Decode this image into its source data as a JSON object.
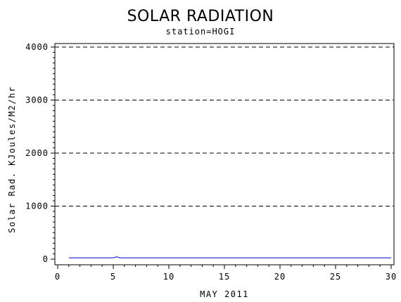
{
  "chart_data": {
    "type": "line",
    "title": "SOLAR RADIATION",
    "subtitle": "station=HOGI",
    "xlabel": "MAY 2011",
    "ylabel": "Solar Rad. KJoules/M2/hr",
    "xlim": [
      0,
      30
    ],
    "ylim": [
      0,
      4000
    ],
    "x_ticks": [
      0,
      5,
      10,
      15,
      20,
      25,
      30
    ],
    "y_ticks": [
      0,
      1000,
      2000,
      3000,
      4000
    ],
    "grid": "horizontal dashed at y ticks above 0",
    "series": [
      {
        "color": "#0000cc",
        "x": [
          1,
          5,
          5.3,
          5.6,
          10,
          15,
          20,
          25,
          30
        ],
        "y": [
          25,
          25,
          45,
          25,
          25,
          25,
          25,
          25,
          25
        ]
      }
    ],
    "colors": {
      "axis": "#000000",
      "grid": "#000000",
      "line": "#0000cc"
    }
  }
}
